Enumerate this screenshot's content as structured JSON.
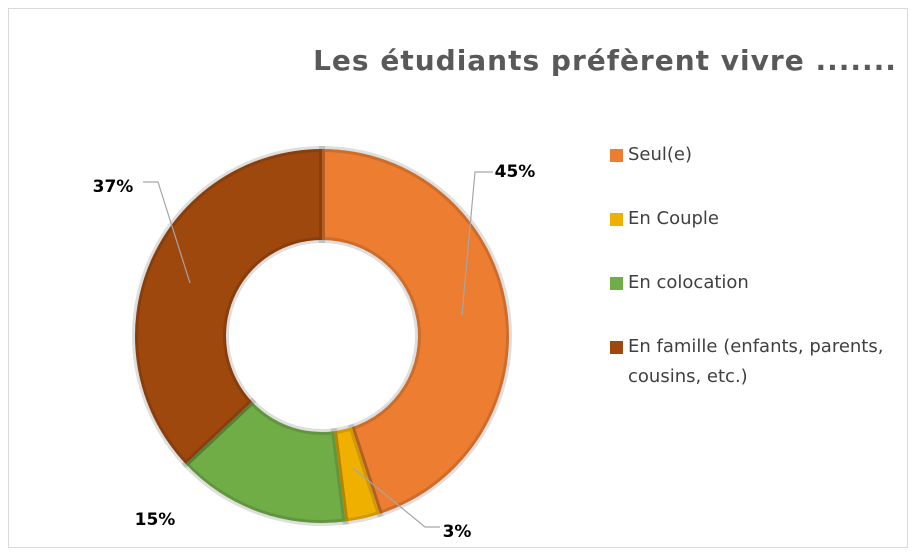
{
  "chart_data": {
    "type": "donut",
    "title": "Les étudiants préfèrent vivre .......",
    "categories": [
      "Seul(e)",
      "En Couple",
      "En colocation",
      "En famille (enfants, parents, cousins, etc.)"
    ],
    "values": [
      45,
      3,
      15,
      37
    ],
    "value_labels": [
      "45%",
      "3%",
      "15%",
      "37%"
    ],
    "colors": [
      "#ED7D31",
      "#F0B000",
      "#70AD47",
      "#9E480E"
    ],
    "legend": "right"
  }
}
